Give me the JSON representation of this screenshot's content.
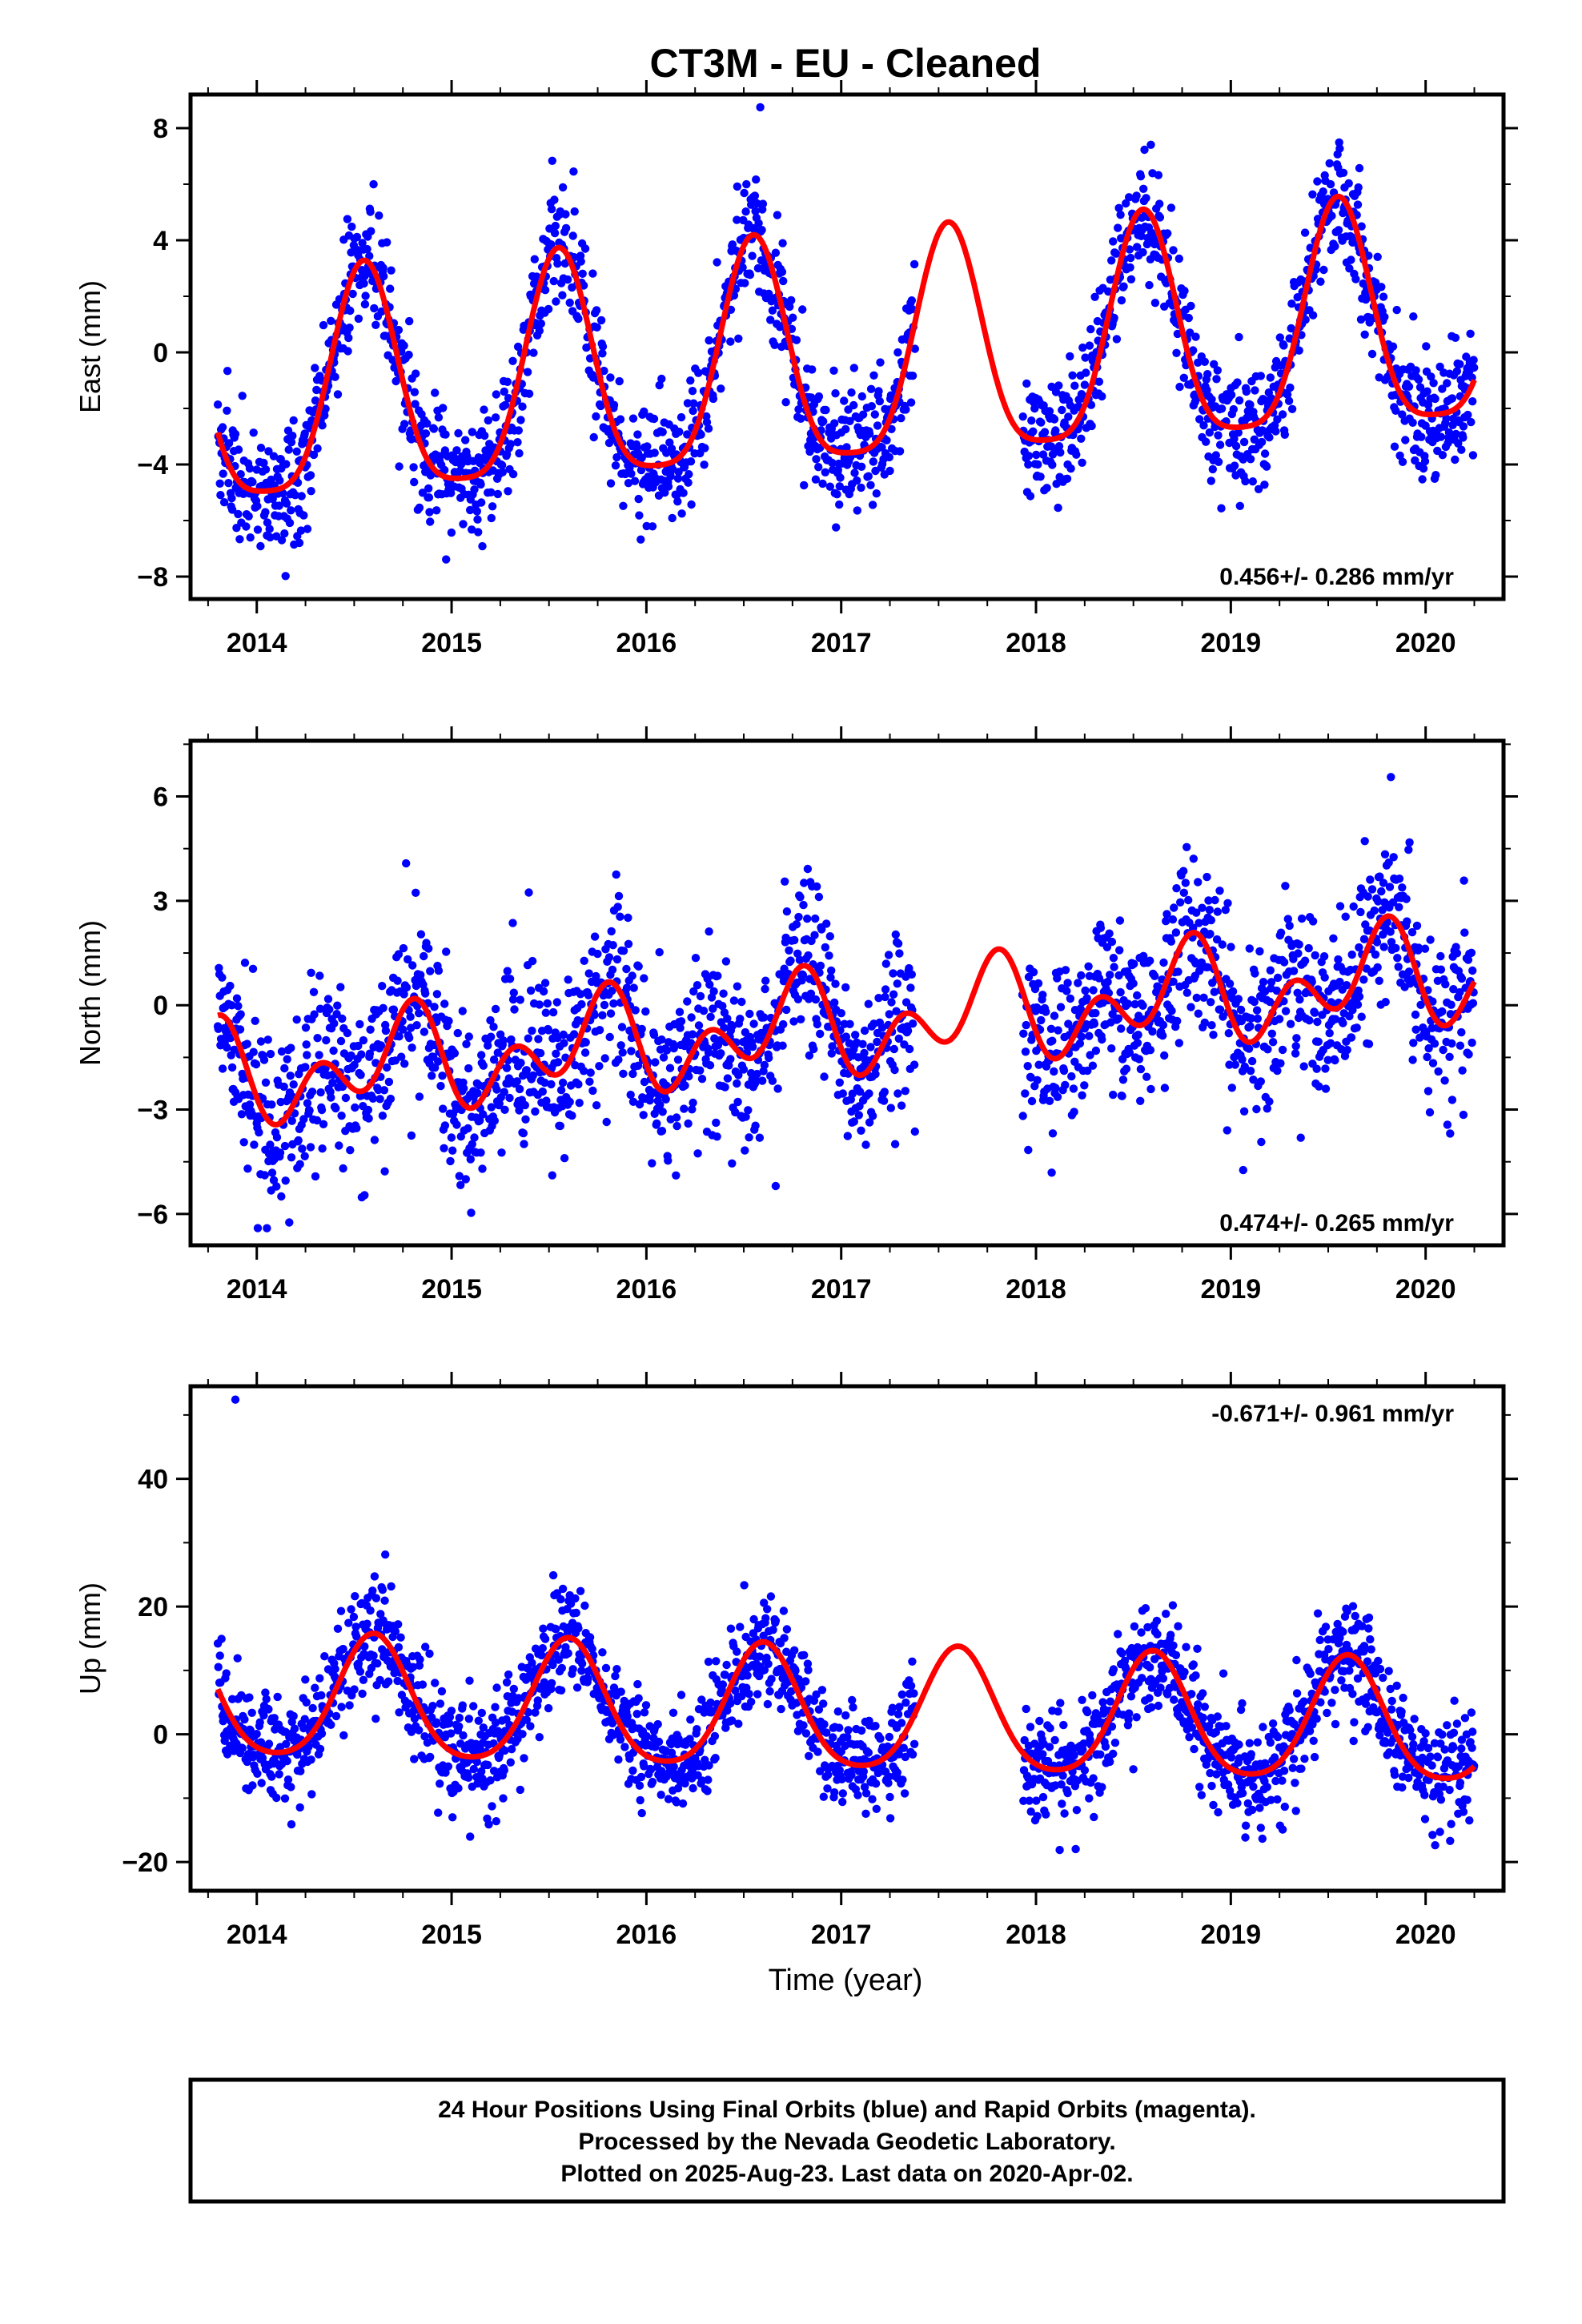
{
  "title": "CT3M  - EU - Cleaned",
  "xlabel": "Time (year)",
  "footer": [
    "24 Hour Positions Using Final Orbits (blue) and Rapid Orbits (magenta).",
    "Processed by the Nevada Geodetic Laboratory.",
    "Plotted on 2025-Aug-23. Last data on 2020-Apr-02."
  ],
  "colors": {
    "data": "#0000ff",
    "model": "#ff0000",
    "axes": "#000000"
  },
  "chart_data": [
    {
      "type": "scatter",
      "ylabel": "East (mm)",
      "rate_text": "0.456+/- 0.286 mm/yr",
      "xlim": [
        2013.66,
        2020.4
      ],
      "ylim": [
        -8.8,
        9.2
      ],
      "yticks": [
        -8,
        -4,
        0,
        4,
        8
      ],
      "ytick_labels": [
        "−8",
        "−4",
        "0",
        "4",
        "8"
      ],
      "xticks": [
        2014,
        2015,
        2016,
        2017,
        2018,
        2019,
        2020
      ],
      "xtick_labels": [
        "2014",
        "2015",
        "2016",
        "2017",
        "2018",
        "2019",
        "2020"
      ],
      "grid": false,
      "series": [
        {
          "kind": "points",
          "segments": [
            [
              2013.8,
              2017.38
            ],
            [
              2017.93,
              2020.25
            ]
          ],
          "model": {
            "offset": -0.5,
            "trend": 0.456,
            "amp1": 4.0,
            "peak1": 0.55,
            "amp2": 0.9,
            "peak2": 0.55
          },
          "noise": 1.1
        },
        {
          "kind": "line",
          "model": {
            "offset": -0.5,
            "trend": 0.456,
            "amp1": 4.0,
            "peak1": 0.55,
            "amp2": 0.9,
            "peak2": 0.55
          },
          "x_range": [
            2013.8,
            2020.25
          ]
        }
      ]
    },
    {
      "type": "scatter",
      "ylabel": "North (mm)",
      "rate_text": "0.474+/- 0.265 mm/yr",
      "xlim": [
        2013.66,
        2020.4
      ],
      "ylim": [
        -6.9,
        7.6
      ],
      "yticks": [
        -6,
        -3,
        0,
        3,
        6
      ],
      "ytick_labels": [
        "−6",
        "−3",
        "0",
        "3",
        "6"
      ],
      "xticks": [
        2014,
        2015,
        2016,
        2017,
        2018,
        2019,
        2020
      ],
      "xtick_labels": [
        "2014",
        "2015",
        "2016",
        "2017",
        "2018",
        "2019",
        "2020"
      ],
      "grid": false,
      "series": [
        {
          "kind": "points",
          "segments": [
            [
              2013.8,
              2017.38
            ],
            [
              2017.93,
              2020.25
            ]
          ],
          "model": {
            "offset": -0.6,
            "trend": 0.474,
            "amp1": 0.9,
            "peak1": 0.75,
            "amp2": 1.0,
            "peak2": 0.32
          },
          "noise": 1.2
        },
        {
          "kind": "line",
          "model": {
            "offset": -0.6,
            "trend": 0.474,
            "amp1": 0.9,
            "peak1": 0.75,
            "amp2": 1.0,
            "peak2": 0.32
          },
          "x_range": [
            2013.8,
            2020.25
          ]
        }
      ]
    },
    {
      "type": "scatter",
      "ylabel": "Up (mm)",
      "rate_text": "-0.671+/- 0.961 mm/yr",
      "xlim": [
        2013.66,
        2020.4
      ],
      "ylim": [
        -24.5,
        54.5
      ],
      "yticks": [
        -20,
        0,
        20,
        40
      ],
      "ytick_labels": [
        "−20",
        "0",
        "20",
        "40"
      ],
      "xticks": [
        2014,
        2015,
        2016,
        2017,
        2018,
        2019,
        2020
      ],
      "xtick_labels": [
        "2014",
        "2015",
        "2016",
        "2017",
        "2018",
        "2019",
        "2020"
      ],
      "grid": false,
      "series": [
        {
          "kind": "points",
          "segments": [
            [
              2013.8,
              2017.38
            ],
            [
              2017.93,
              2020.25
            ]
          ],
          "model": {
            "offset": 3.2,
            "trend": -0.671,
            "amp1": 9.5,
            "peak1": 0.6,
            "amp2": 1.5,
            "peak2": 0.6
          },
          "noise": 4.2
        },
        {
          "kind": "line",
          "model": {
            "offset": 3.2,
            "trend": -0.671,
            "amp1": 9.5,
            "peak1": 0.6,
            "amp2": 1.5,
            "peak2": 0.6
          },
          "x_range": [
            2013.8,
            2020.25
          ]
        }
      ]
    }
  ]
}
